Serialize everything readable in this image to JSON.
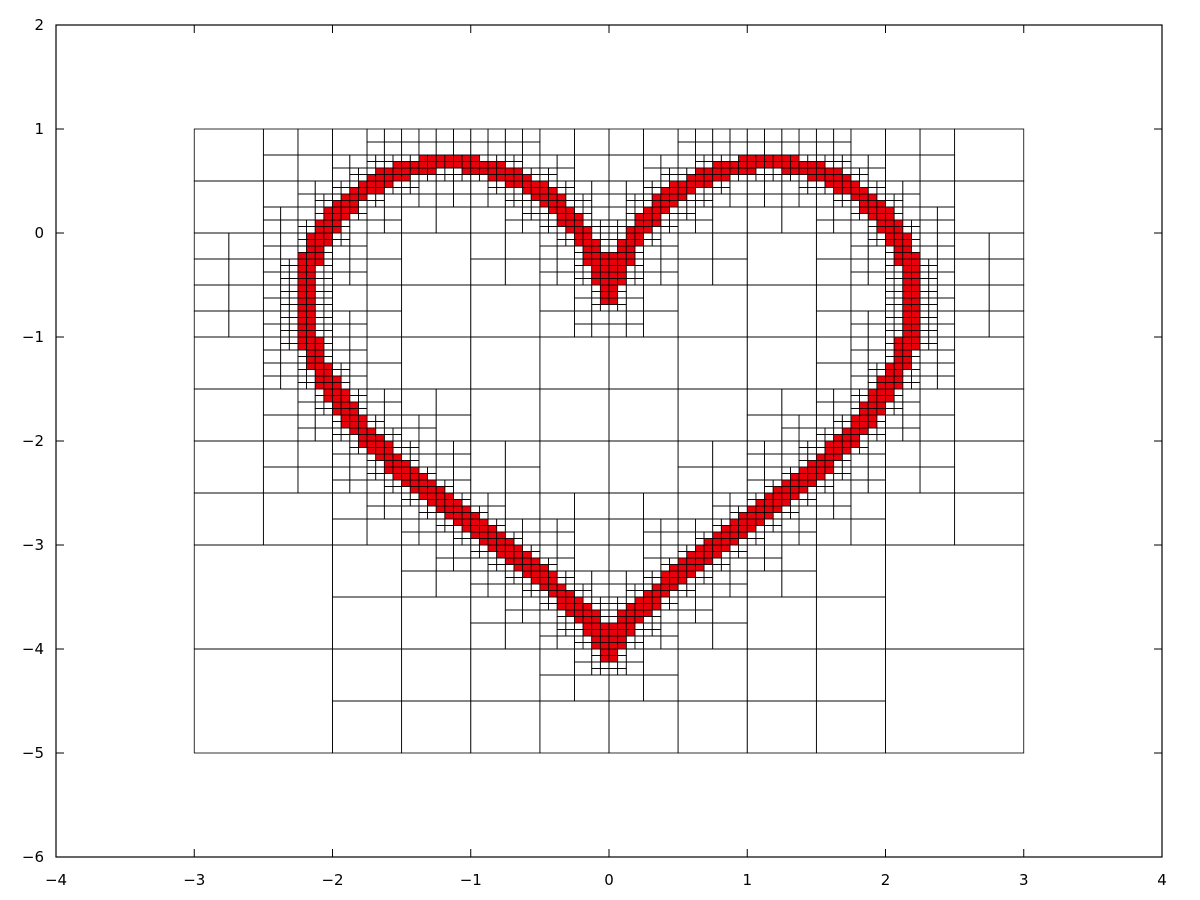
{
  "chart_data": {
    "type": "adaptive-mesh",
    "title": "",
    "xlabel": "",
    "ylabel": "",
    "xlim": [
      -4,
      4
    ],
    "ylim": [
      -6,
      2
    ],
    "xticks": [
      -4,
      -3,
      -2,
      -1,
      0,
      1,
      2,
      3,
      4
    ],
    "yticks": [
      -6,
      -5,
      -4,
      -3,
      -2,
      -1,
      0,
      1,
      2
    ],
    "xtick_labels": [
      "−4",
      "−3",
      "−2",
      "−1",
      "0",
      "1",
      "2",
      "3",
      "4"
    ],
    "ytick_labels": [
      "−6",
      "−5",
      "−4",
      "−3",
      "−2",
      "−1",
      "0",
      "1",
      "2"
    ],
    "grid": false,
    "domain": {
      "x": [
        -3,
        3
      ],
      "y": [
        -5,
        1
      ]
    },
    "base_cell_size": 1,
    "min_cell_size": 0.0625,
    "colors": {
      "curve_cells": "#e8000b",
      "cell_edges": "#000000"
    },
    "curve": {
      "description": "heart: x = 2.2 sin(t)^3 ... red cells mark the finest cells crossing the curve",
      "top_y": 0.67,
      "bottom_y": -4.05,
      "max_x": 2.22
    }
  }
}
